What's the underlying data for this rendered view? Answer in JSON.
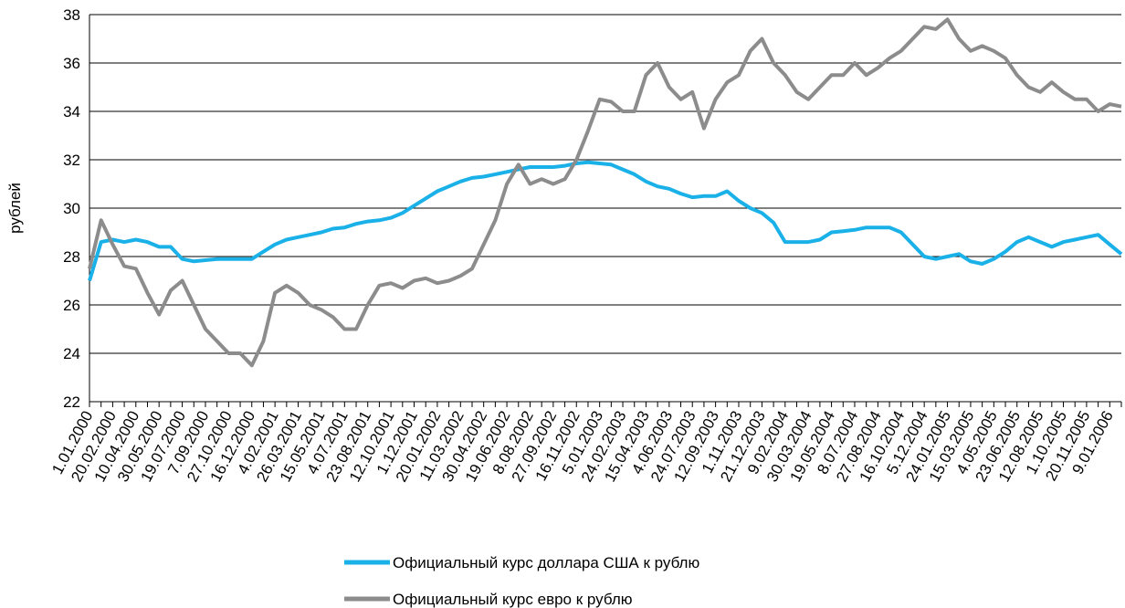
{
  "chart_data": {
    "type": "line",
    "ylabel": "рублей",
    "categories": [
      "1.01.2000",
      null,
      "20.02.2000",
      null,
      "10.04.2000",
      null,
      "30.05.2000",
      null,
      "19.07.2000",
      null,
      "7.09.2000",
      null,
      "27.10.2000",
      null,
      "16.12.2000",
      null,
      "4.02.2001",
      null,
      "26.03.2001",
      null,
      "15.05.2001",
      null,
      "4.07.2001",
      null,
      "23.08.2001",
      null,
      "12.10.2001",
      null,
      "1.12.2001",
      null,
      "20.01.2002",
      null,
      "11.03.2002",
      null,
      "30.04.2002",
      null,
      "19.06.2002",
      null,
      "8.08.2002",
      null,
      "27.09.2002",
      null,
      "16.11.2002",
      null,
      "5.01.2003",
      null,
      "24.02.2003",
      null,
      "15.04.2003",
      null,
      "4.06.2003",
      null,
      "24.07.2003",
      null,
      "12.09.2003",
      null,
      "1.11.2003",
      null,
      "21.12.2003",
      null,
      "9.02.2004",
      null,
      "30.03.2004",
      null,
      "19.05.2004",
      null,
      "8.07.2004",
      null,
      "27.08.2004",
      null,
      "16.10.2004",
      null,
      "5.12.2004",
      null,
      "24.01.2005",
      null,
      "15.03.2005",
      null,
      "4.05.2005",
      null,
      "23.06.2005",
      null,
      "12.08.2005",
      null,
      "1.10.2005",
      null,
      "20.11.2005",
      null,
      "9.01.2006",
      null
    ],
    "series": [
      {
        "name": "Официальный курс доллара США к рублю",
        "color": "#1ab0e8",
        "values": [
          27.0,
          28.6,
          28.7,
          28.6,
          28.7,
          28.6,
          28.4,
          28.4,
          27.9,
          27.8,
          27.85,
          27.9,
          27.9,
          27.9,
          27.9,
          28.2,
          28.5,
          28.7,
          28.8,
          28.9,
          29.0,
          29.15,
          29.2,
          29.35,
          29.45,
          29.5,
          29.6,
          29.8,
          30.1,
          30.4,
          30.7,
          30.9,
          31.1,
          31.25,
          31.3,
          31.4,
          31.5,
          31.6,
          31.7,
          31.7,
          31.7,
          31.75,
          31.85,
          31.9,
          31.85,
          31.8,
          31.6,
          31.4,
          31.1,
          30.9,
          30.8,
          30.6,
          30.45,
          30.5,
          30.5,
          30.7,
          30.3,
          30.0,
          29.8,
          29.4,
          28.6,
          28.6,
          28.6,
          28.7,
          29.0,
          29.05,
          29.1,
          29.2,
          29.2,
          29.2,
          29.0,
          28.5,
          28.0,
          27.9,
          28.0,
          28.1,
          27.8,
          27.7,
          27.9,
          28.2,
          28.6,
          28.8,
          28.6,
          28.4,
          28.6,
          28.7,
          28.8,
          28.9,
          28.5,
          28.1
        ]
      },
      {
        "name": "Официальный курс евро к рублю",
        "color": "#8c8c8c",
        "values": [
          27.5,
          29.5,
          28.5,
          27.6,
          27.5,
          26.5,
          25.6,
          26.6,
          27.0,
          26.0,
          25.0,
          24.5,
          24.0,
          24.0,
          23.5,
          24.5,
          26.5,
          26.8,
          26.5,
          26.0,
          25.8,
          25.5,
          25.0,
          25.0,
          26.0,
          26.8,
          26.9,
          26.7,
          27.0,
          27.1,
          26.9,
          27.0,
          27.2,
          27.5,
          28.5,
          29.5,
          31.0,
          31.8,
          31.0,
          31.2,
          31.0,
          31.2,
          32.0,
          33.2,
          34.5,
          34.4,
          34.0,
          34.0,
          35.5,
          36.0,
          35.0,
          34.5,
          34.8,
          33.3,
          34.5,
          35.2,
          35.5,
          36.5,
          37.0,
          36.0,
          35.5,
          34.8,
          34.5,
          35.0,
          35.5,
          35.5,
          36.0,
          35.5,
          35.8,
          36.2,
          36.5,
          37.0,
          37.5,
          37.4,
          37.8,
          37.0,
          36.5,
          36.7,
          36.5,
          36.2,
          35.5,
          35.0,
          34.8,
          35.2,
          34.8,
          34.5,
          34.5,
          34.0,
          34.3,
          34.2
        ]
      }
    ],
    "ylim": [
      22,
      38
    ],
    "yticks": [
      22,
      24,
      26,
      28,
      30,
      32,
      34,
      36,
      38
    ],
    "grid": true,
    "legend": "bottom"
  }
}
